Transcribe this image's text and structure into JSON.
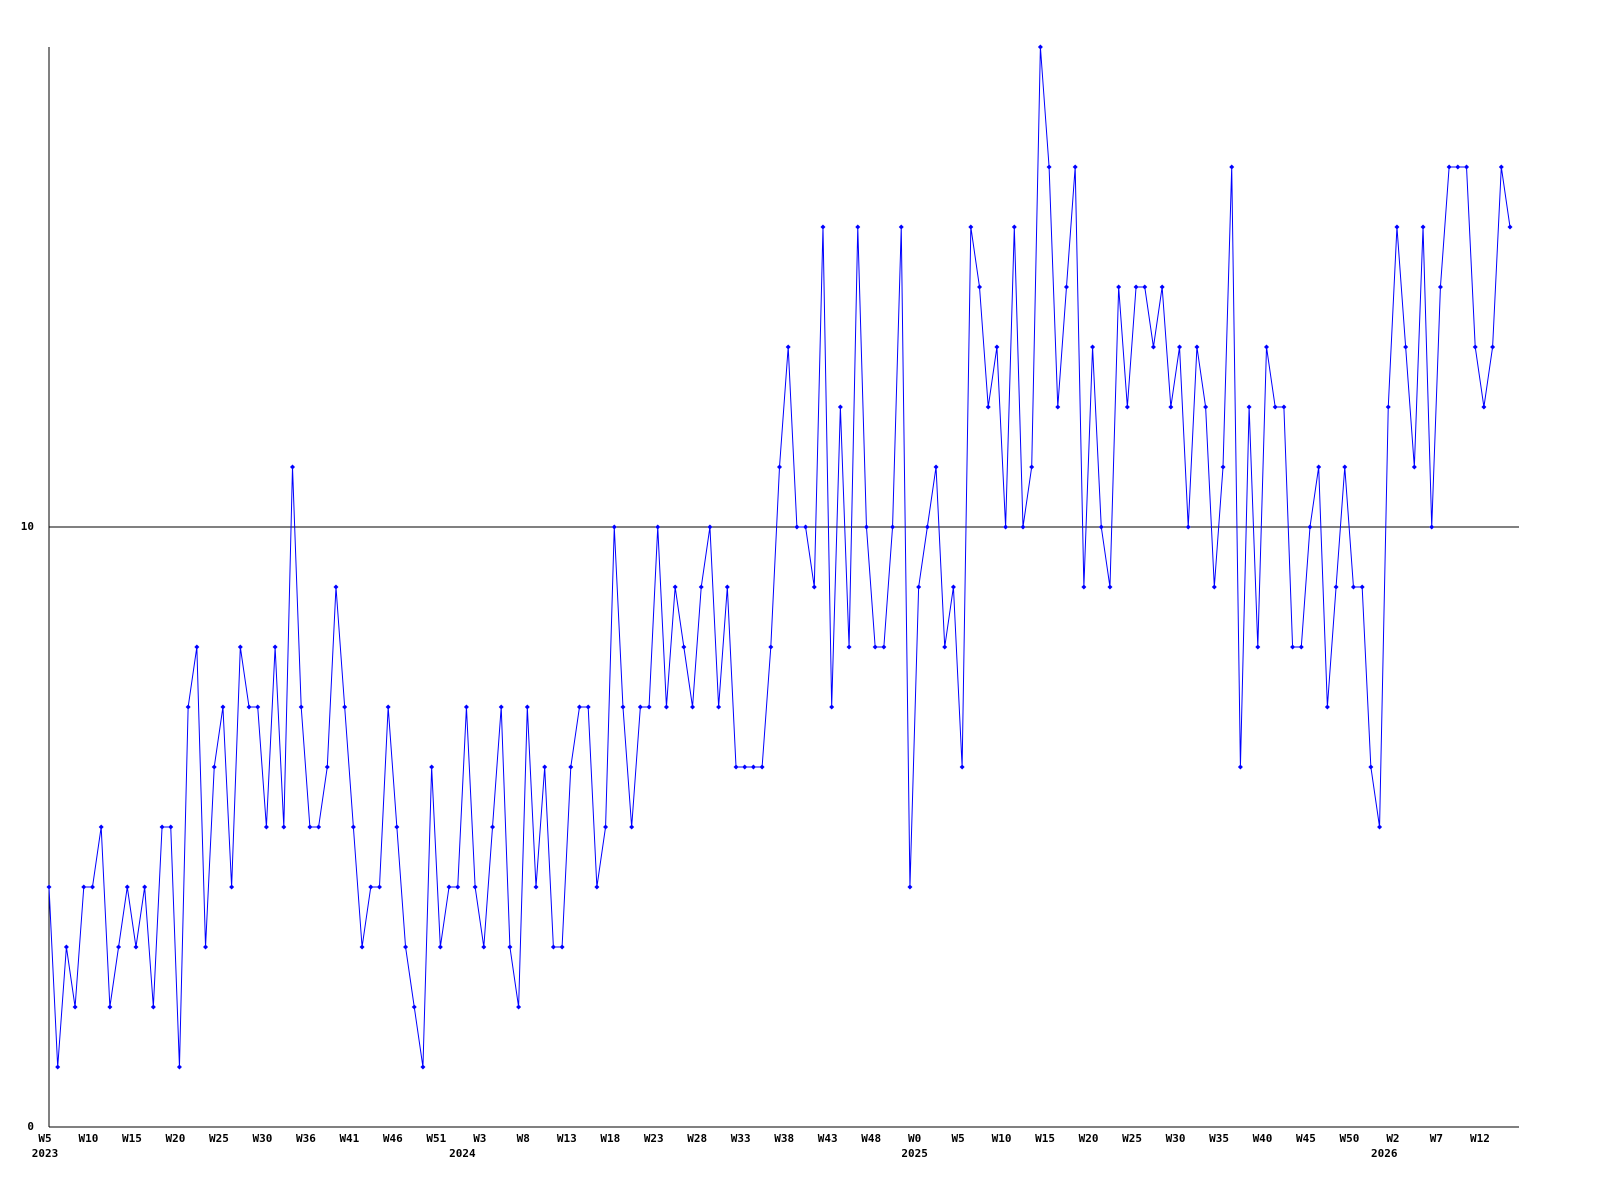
{
  "chart_data": {
    "type": "line",
    "categories": [
      "W5",
      null,
      null,
      null,
      null,
      "W10",
      null,
      null,
      null,
      null,
      "W15",
      null,
      null,
      null,
      null,
      "W20",
      null,
      null,
      null,
      null,
      "W25",
      null,
      null,
      null,
      null,
      "W30",
      null,
      null,
      null,
      null,
      "W36",
      null,
      null,
      null,
      null,
      "W41",
      null,
      null,
      null,
      null,
      "W46",
      null,
      null,
      null,
      null,
      "W51",
      null,
      null,
      null,
      null,
      "W3",
      null,
      null,
      null,
      null,
      "W8",
      null,
      null,
      null,
      null,
      "W13",
      null,
      null,
      null,
      null,
      "W18",
      null,
      null,
      null,
      null,
      "W23",
      null,
      null,
      null,
      null,
      "W28",
      null,
      null,
      null,
      null,
      "W33",
      null,
      null,
      null,
      null,
      "W38",
      null,
      null,
      null,
      null,
      "W43",
      null,
      null,
      null,
      null,
      "W48",
      null,
      null,
      null,
      null,
      "W0",
      null,
      null,
      null,
      null,
      "W5",
      null,
      null,
      null,
      null,
      "W10",
      null,
      null,
      null,
      null,
      "W15",
      null,
      null,
      null,
      null,
      "W20",
      null,
      null,
      null,
      null,
      "W25",
      null,
      null,
      null,
      null,
      "W30",
      null,
      null,
      null,
      null,
      "W35",
      null,
      null,
      null,
      null,
      "W40",
      null,
      null,
      null,
      null,
      "W45",
      null,
      null,
      null,
      null,
      "W50",
      null,
      null,
      null,
      null,
      "W2",
      null,
      null,
      null,
      null,
      "W7",
      null,
      null,
      null,
      null,
      "W12",
      null,
      null,
      null
    ],
    "years": [
      "2023",
      null,
      null,
      null,
      null,
      null,
      null,
      null,
      null,
      null,
      null,
      null,
      null,
      null,
      null,
      null,
      null,
      null,
      null,
      null,
      null,
      null,
      null,
      null,
      null,
      null,
      null,
      null,
      null,
      null,
      null,
      null,
      null,
      null,
      null,
      null,
      null,
      null,
      null,
      null,
      null,
      null,
      null,
      null,
      null,
      null,
      null,
      null,
      "2024",
      null,
      null,
      null,
      null,
      null,
      null,
      null,
      null,
      null,
      null,
      null,
      null,
      null,
      null,
      null,
      null,
      null,
      null,
      null,
      null,
      null,
      null,
      null,
      null,
      null,
      null,
      null,
      null,
      null,
      null,
      null,
      null,
      null,
      null,
      null,
      null,
      null,
      null,
      null,
      null,
      null,
      null,
      null,
      null,
      null,
      null,
      null,
      null,
      null,
      null,
      null,
      "2025",
      null,
      null,
      null,
      null,
      null,
      null,
      null,
      null,
      null,
      null,
      null,
      null,
      null,
      null,
      null,
      null,
      null,
      null,
      null,
      null,
      null,
      null,
      null,
      null,
      null,
      null,
      null,
      null,
      null,
      null,
      null,
      null,
      null,
      null,
      null,
      null,
      null,
      null,
      null,
      null,
      null,
      null,
      null,
      null,
      null,
      null,
      null,
      null,
      null,
      null,
      null,
      null,
      null,
      "2026",
      null,
      null,
      null,
      null,
      null,
      null,
      null,
      null,
      null,
      null,
      null,
      null,
      null,
      null
    ],
    "values": [
      4,
      1,
      3,
      2,
      4,
      4,
      5,
      2,
      3,
      4,
      3,
      4,
      2,
      5,
      5,
      1,
      7,
      8,
      3,
      6,
      7,
      4,
      8,
      7,
      7,
      5,
      8,
      5,
      11,
      7,
      5,
      5,
      6,
      9,
      7,
      5,
      3,
      4,
      4,
      7,
      5,
      3,
      2,
      1,
      6,
      3,
      4,
      4,
      7,
      4,
      3,
      5,
      7,
      3,
      2,
      7,
      4,
      6,
      3,
      3,
      6,
      7,
      7,
      4,
      5,
      10,
      7,
      5,
      7,
      7,
      10,
      7,
      9,
      8,
      7,
      9,
      10,
      7,
      9,
      6,
      6,
      6,
      6,
      8,
      11,
      13,
      10,
      10,
      9,
      15,
      7,
      12,
      8,
      15,
      10,
      8,
      8,
      10,
      15,
      4,
      9,
      10,
      11,
      8,
      9,
      6,
      15,
      14,
      12,
      13,
      10,
      15,
      10,
      11,
      18,
      16,
      12,
      14,
      16,
      9,
      13,
      10,
      9,
      14,
      12,
      14,
      14,
      13,
      14,
      12,
      13,
      10,
      13,
      12,
      9,
      11,
      16,
      6,
      12,
      8,
      13,
      12,
      12,
      8,
      8,
      10,
      11,
      7,
      9,
      11,
      9,
      9,
      6,
      5,
      12,
      15,
      13,
      11,
      15,
      10,
      14,
      16,
      16,
      16,
      13,
      12,
      13,
      16,
      15
    ],
    "color": "#0000ff",
    "ylim": [
      0,
      18
    ],
    "yticks": [
      0,
      10
    ],
    "grid": true
  }
}
